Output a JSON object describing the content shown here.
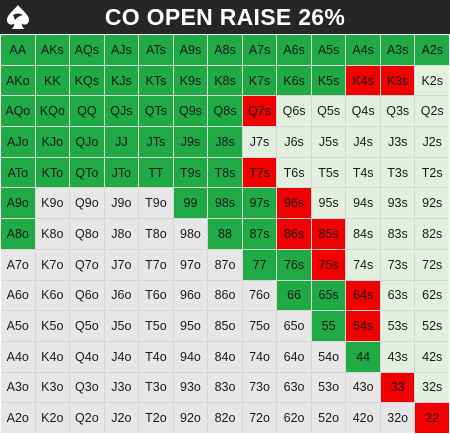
{
  "header": {
    "title": "CO OPEN RAISE 26%",
    "logo_icon": "spade-logo-icon"
  },
  "colors": {
    "raise": "#1faa45",
    "mixed_red": "#f00000",
    "fold_suited": "#e3efdf",
    "fold_offsuit": "#e7e7e7",
    "header_bg": "#262626"
  },
  "grid": {
    "rows": [
      [
        [
          "AA",
          "g"
        ],
        [
          "AKs",
          "g"
        ],
        [
          "AQs",
          "g"
        ],
        [
          "AJs",
          "g"
        ],
        [
          "ATs",
          "g"
        ],
        [
          "A9s",
          "g"
        ],
        [
          "A8s",
          "g"
        ],
        [
          "A7s",
          "g"
        ],
        [
          "A6s",
          "g"
        ],
        [
          "A5s",
          "g"
        ],
        [
          "A4s",
          "g"
        ],
        [
          "A3s",
          "g"
        ],
        [
          "A2s",
          "g"
        ]
      ],
      [
        [
          "AKo",
          "g"
        ],
        [
          "KK",
          "g"
        ],
        [
          "KQs",
          "g"
        ],
        [
          "KJs",
          "g"
        ],
        [
          "KTs",
          "g"
        ],
        [
          "K9s",
          "g"
        ],
        [
          "K8s",
          "g"
        ],
        [
          "K7s",
          "g"
        ],
        [
          "K6s",
          "g"
        ],
        [
          "K5s",
          "g"
        ],
        [
          "K4s",
          "r"
        ],
        [
          "K3s",
          "r"
        ],
        [
          "K2s",
          "lg"
        ]
      ],
      [
        [
          "AQo",
          "g"
        ],
        [
          "KQo",
          "g"
        ],
        [
          "QQ",
          "g"
        ],
        [
          "QJs",
          "g"
        ],
        [
          "QTs",
          "g"
        ],
        [
          "Q9s",
          "g"
        ],
        [
          "Q8s",
          "g"
        ],
        [
          "Q7s",
          "r"
        ],
        [
          "Q6s",
          "lg"
        ],
        [
          "Q5s",
          "lg"
        ],
        [
          "Q4s",
          "lg"
        ],
        [
          "Q3s",
          "lg"
        ],
        [
          "Q2s",
          "lg"
        ]
      ],
      [
        [
          "AJo",
          "g"
        ],
        [
          "KJo",
          "g"
        ],
        [
          "QJo",
          "g"
        ],
        [
          "JJ",
          "g"
        ],
        [
          "JTs",
          "g"
        ],
        [
          "J9s",
          "g"
        ],
        [
          "J8s",
          "g"
        ],
        [
          "J7s",
          "lg"
        ],
        [
          "J6s",
          "lg"
        ],
        [
          "J5s",
          "lg"
        ],
        [
          "J4s",
          "lg"
        ],
        [
          "J3s",
          "lg"
        ],
        [
          "J2s",
          "lg"
        ]
      ],
      [
        [
          "ATo",
          "g"
        ],
        [
          "KTo",
          "g"
        ],
        [
          "QTo",
          "g"
        ],
        [
          "JTo",
          "g"
        ],
        [
          "TT",
          "g"
        ],
        [
          "T9s",
          "g"
        ],
        [
          "T8s",
          "g"
        ],
        [
          "T7s",
          "r"
        ],
        [
          "T6s",
          "lg"
        ],
        [
          "T5s",
          "lg"
        ],
        [
          "T4s",
          "lg"
        ],
        [
          "T3s",
          "lg"
        ],
        [
          "T2s",
          "lg"
        ]
      ],
      [
        [
          "A9o",
          "g"
        ],
        [
          "K9o",
          "gr"
        ],
        [
          "Q9o",
          "gr"
        ],
        [
          "J9o",
          "gr"
        ],
        [
          "T9o",
          "gr"
        ],
        [
          "99",
          "g"
        ],
        [
          "98s",
          "g"
        ],
        [
          "97s",
          "g"
        ],
        [
          "96s",
          "r"
        ],
        [
          "95s",
          "lg"
        ],
        [
          "94s",
          "lg"
        ],
        [
          "93s",
          "lg"
        ],
        [
          "92s",
          "lg"
        ]
      ],
      [
        [
          "A8o",
          "g"
        ],
        [
          "K8o",
          "gr"
        ],
        [
          "Q8o",
          "gr"
        ],
        [
          "J8o",
          "gr"
        ],
        [
          "T8o",
          "gr"
        ],
        [
          "98o",
          "gr"
        ],
        [
          "88",
          "g"
        ],
        [
          "87s",
          "g"
        ],
        [
          "86s",
          "r"
        ],
        [
          "85s",
          "r"
        ],
        [
          "84s",
          "lg"
        ],
        [
          "83s",
          "lg"
        ],
        [
          "82s",
          "lg"
        ]
      ],
      [
        [
          "A7o",
          "gr"
        ],
        [
          "K7o",
          "gr"
        ],
        [
          "Q7o",
          "gr"
        ],
        [
          "J7o",
          "gr"
        ],
        [
          "T7o",
          "gr"
        ],
        [
          "97o",
          "gr"
        ],
        [
          "87o",
          "gr"
        ],
        [
          "77",
          "g"
        ],
        [
          "76s",
          "g"
        ],
        [
          "75s",
          "r"
        ],
        [
          "74s",
          "lg"
        ],
        [
          "73s",
          "lg"
        ],
        [
          "72s",
          "lg"
        ]
      ],
      [
        [
          "A6o",
          "gr"
        ],
        [
          "K6o",
          "gr"
        ],
        [
          "Q6o",
          "gr"
        ],
        [
          "J6o",
          "gr"
        ],
        [
          "T6o",
          "gr"
        ],
        [
          "96o",
          "gr"
        ],
        [
          "86o",
          "gr"
        ],
        [
          "76o",
          "gr"
        ],
        [
          "66",
          "g"
        ],
        [
          "65s",
          "g"
        ],
        [
          "64s",
          "r"
        ],
        [
          "63s",
          "lg"
        ],
        [
          "62s",
          "lg"
        ]
      ],
      [
        [
          "A5o",
          "gr"
        ],
        [
          "K5o",
          "gr"
        ],
        [
          "Q5o",
          "gr"
        ],
        [
          "J5o",
          "gr"
        ],
        [
          "T5o",
          "gr"
        ],
        [
          "95o",
          "gr"
        ],
        [
          "85o",
          "gr"
        ],
        [
          "75o",
          "gr"
        ],
        [
          "65o",
          "gr"
        ],
        [
          "55",
          "g"
        ],
        [
          "54s",
          "r"
        ],
        [
          "53s",
          "lg"
        ],
        [
          "52s",
          "lg"
        ]
      ],
      [
        [
          "A4o",
          "gr"
        ],
        [
          "K4o",
          "gr"
        ],
        [
          "Q4o",
          "gr"
        ],
        [
          "J4o",
          "gr"
        ],
        [
          "T4o",
          "gr"
        ],
        [
          "94o",
          "gr"
        ],
        [
          "84o",
          "gr"
        ],
        [
          "74o",
          "gr"
        ],
        [
          "64o",
          "gr"
        ],
        [
          "54o",
          "gr"
        ],
        [
          "44",
          "g"
        ],
        [
          "43s",
          "lg"
        ],
        [
          "42s",
          "lg"
        ]
      ],
      [
        [
          "A3o",
          "gr"
        ],
        [
          "K3o",
          "gr"
        ],
        [
          "Q3o",
          "gr"
        ],
        [
          "J3o",
          "gr"
        ],
        [
          "T3o",
          "gr"
        ],
        [
          "93o",
          "gr"
        ],
        [
          "83o",
          "gr"
        ],
        [
          "73o",
          "gr"
        ],
        [
          "63o",
          "gr"
        ],
        [
          "53o",
          "gr"
        ],
        [
          "43o",
          "gr"
        ],
        [
          "33",
          "r"
        ],
        [
          "32s",
          "lg"
        ]
      ],
      [
        [
          "A2o",
          "gr"
        ],
        [
          "K2o",
          "gr"
        ],
        [
          "Q2o",
          "gr"
        ],
        [
          "J2o",
          "gr"
        ],
        [
          "T2o",
          "gr"
        ],
        [
          "92o",
          "gr"
        ],
        [
          "82o",
          "gr"
        ],
        [
          "72o",
          "gr"
        ],
        [
          "62o",
          "gr"
        ],
        [
          "52o",
          "gr"
        ],
        [
          "42o",
          "gr"
        ],
        [
          "32o",
          "gr"
        ],
        [
          "22",
          "r"
        ]
      ]
    ]
  }
}
